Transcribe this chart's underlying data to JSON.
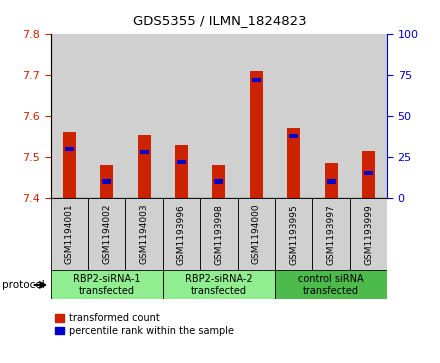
{
  "title": "GDS5355 / ILMN_1824823",
  "samples": [
    "GSM1194001",
    "GSM1194002",
    "GSM1194003",
    "GSM1193996",
    "GSM1193998",
    "GSM1194000",
    "GSM1193995",
    "GSM1193997",
    "GSM1193999"
  ],
  "transformed_counts": [
    7.56,
    7.48,
    7.555,
    7.53,
    7.48,
    7.71,
    7.57,
    7.485,
    7.515
  ],
  "percentile_ranks": [
    30,
    10,
    28,
    22,
    10,
    72,
    38,
    10,
    15
  ],
  "ylim_left": [
    7.4,
    7.8
  ],
  "ylim_right": [
    0,
    100
  ],
  "yticks_left": [
    7.4,
    7.5,
    7.6,
    7.7,
    7.8
  ],
  "yticks_right": [
    0,
    25,
    50,
    75,
    100
  ],
  "left_tick_color": "#cc2200",
  "right_tick_color": "#0000cc",
  "bar_color_red": "#cc2200",
  "bar_color_blue": "#0000cc",
  "sample_bg_color": "#d0d0d0",
  "groups": [
    {
      "label": "RBP2-siRNA-1\ntransfected",
      "indices": [
        0,
        1,
        2
      ],
      "color": "#90EE90"
    },
    {
      "label": "RBP2-siRNA-2\ntransfected",
      "indices": [
        3,
        4,
        5
      ],
      "color": "#90EE90"
    },
    {
      "label": "control siRNA\ntransfected",
      "indices": [
        6,
        7,
        8
      ],
      "color": "#4cbb4c"
    }
  ],
  "protocol_label": "protocol",
  "legend_red_label": "transformed count",
  "legend_blue_label": "percentile rank within the sample",
  "bar_width": 0.35,
  "base_value": 7.4
}
